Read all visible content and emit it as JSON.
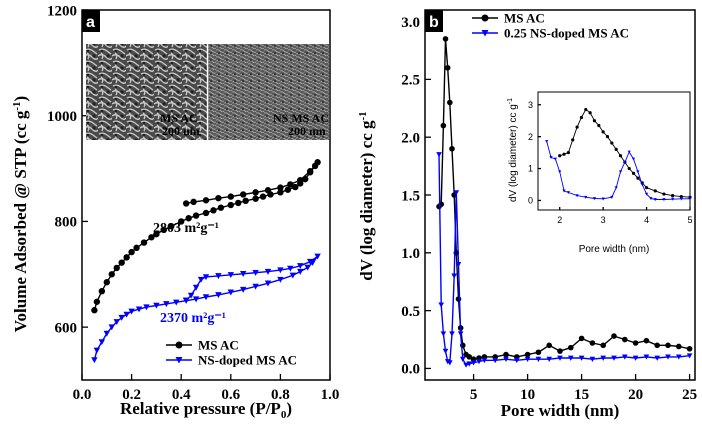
{
  "chart_data": [
    {
      "panel": "a",
      "type": "line",
      "xlabel": "Relative pressure (P/P0)",
      "ylabel": "Volume Adsorbed @ STP (cc g-1)",
      "xlim": [
        0,
        1.0
      ],
      "ylim": [
        500,
        1200
      ],
      "x_ticks": [
        "0.0",
        "0.2",
        "0.4",
        "0.6",
        "0.8",
        "1.0"
      ],
      "y_ticks": [
        "600",
        "800",
        "1000",
        "1200"
      ],
      "annotations": [
        "2803 m²g⁻¹",
        "2370 m²g⁻¹"
      ],
      "insets": [
        "MS AC\n200 nm",
        "NS MS AC\n200 nm"
      ],
      "legend": [
        "MS AC",
        "NS-doped MS AC"
      ],
      "series": [
        {
          "name": "MS AC",
          "color": "#000000",
          "marker": "circle",
          "x": [
            0.05,
            0.06,
            0.08,
            0.1,
            0.12,
            0.14,
            0.16,
            0.18,
            0.2,
            0.22,
            0.25,
            0.28,
            0.3,
            0.33,
            0.36,
            0.4,
            0.43,
            0.46,
            0.5,
            0.53,
            0.56,
            0.6,
            0.63,
            0.66,
            0.7,
            0.73,
            0.76,
            0.8,
            0.83,
            0.86,
            0.88,
            0.9,
            0.92,
            0.94,
            0.95,
            0.92,
            0.88,
            0.84,
            0.8,
            0.75,
            0.7,
            0.65,
            0.6,
            0.55,
            0.5,
            0.45,
            0.42
          ],
          "y": [
            632,
            648,
            668,
            685,
            700,
            712,
            722,
            732,
            742,
            750,
            760,
            770,
            776,
            784,
            791,
            800,
            806,
            811,
            816,
            821,
            826,
            831,
            835,
            839,
            843,
            847,
            851,
            855,
            860,
            865,
            872,
            880,
            893,
            905,
            912,
            895,
            878,
            870,
            864,
            859,
            855,
            851,
            847,
            844,
            840,
            837,
            834
          ]
        },
        {
          "name": "NS-doped MS AC",
          "color": "#0000ff",
          "marker": "triangle-down",
          "x": [
            0.05,
            0.06,
            0.08,
            0.1,
            0.12,
            0.14,
            0.16,
            0.18,
            0.2,
            0.23,
            0.26,
            0.3,
            0.34,
            0.38,
            0.42,
            0.46,
            0.5,
            0.55,
            0.6,
            0.65,
            0.7,
            0.75,
            0.8,
            0.85,
            0.88,
            0.91,
            0.93,
            0.95,
            0.92,
            0.88,
            0.84,
            0.8,
            0.75,
            0.7,
            0.65,
            0.6,
            0.55,
            0.5,
            0.48,
            0.46,
            0.44,
            0.42
          ],
          "y": [
            538,
            556,
            572,
            588,
            600,
            610,
            618,
            624,
            630,
            634,
            638,
            641,
            644,
            647,
            650,
            653,
            657,
            661,
            666,
            671,
            677,
            683,
            690,
            698,
            705,
            713,
            722,
            734,
            724,
            716,
            711,
            708,
            705,
            703,
            701,
            699,
            697,
            695,
            690,
            675,
            660,
            651
          ]
        }
      ]
    },
    {
      "panel": "b",
      "type": "line",
      "xlabel": "Pore width (nm)",
      "ylabel": "dV (log diameter) cc g-1",
      "xlim": [
        0.5,
        25.5
      ],
      "ylim": [
        -0.1,
        3.1
      ],
      "x_ticks": [
        "5",
        "10",
        "15",
        "20",
        "25"
      ],
      "y_ticks": [
        "0.0",
        "0.5",
        "1.0",
        "1.5",
        "2.0",
        "2.5",
        "3.0"
      ],
      "legend": [
        "MS AC",
        "0.25 NS-doped MS AC"
      ],
      "series": [
        {
          "name": "MS AC",
          "color": "#000000",
          "marker": "circle",
          "x": [
            1.8,
            2.0,
            2.2,
            2.4,
            2.6,
            2.8,
            3.0,
            3.2,
            3.4,
            3.6,
            3.8,
            4.0,
            4.3,
            4.6,
            5.0,
            5.5,
            6.0,
            7.0,
            8.0,
            9.0,
            10.0,
            11.0,
            12.0,
            13.0,
            14.0,
            15.0,
            16.0,
            17.0,
            18.0,
            19.0,
            20.0,
            21.0,
            22.0,
            23.0,
            24.0,
            25.0
          ],
          "y": [
            1.4,
            1.42,
            2.1,
            2.85,
            2.6,
            2.3,
            1.9,
            1.5,
            1.0,
            0.6,
            0.35,
            0.2,
            0.12,
            0.1,
            0.08,
            0.09,
            0.1,
            0.1,
            0.12,
            0.1,
            0.12,
            0.14,
            0.2,
            0.15,
            0.18,
            0.26,
            0.22,
            0.2,
            0.28,
            0.25,
            0.22,
            0.24,
            0.2,
            0.2,
            0.19,
            0.17
          ]
        },
        {
          "name": "0.25 NS-doped MS AC",
          "color": "#0000ff",
          "marker": "triangle-down",
          "x": [
            1.8,
            2.0,
            2.2,
            2.4,
            2.6,
            2.8,
            3.0,
            3.2,
            3.4,
            3.6,
            3.8,
            4.0,
            4.3,
            4.6,
            5.0,
            5.5,
            6.0,
            7.0,
            8.0,
            9.0,
            10.0,
            11.0,
            12.0,
            13.0,
            14.0,
            15.0,
            16.0,
            17.0,
            18.0,
            19.0,
            20.0,
            21.0,
            22.0,
            23.0,
            24.0,
            25.0
          ],
          "y": [
            1.85,
            0.55,
            0.3,
            0.15,
            0.06,
            0.05,
            0.3,
            0.8,
            1.52,
            0.9,
            0.3,
            0.08,
            0.03,
            0.04,
            0.05,
            0.06,
            0.07,
            0.07,
            0.08,
            0.07,
            0.08,
            0.08,
            0.08,
            0.09,
            0.09,
            0.09,
            0.08,
            0.09,
            0.09,
            0.1,
            0.09,
            0.1,
            0.09,
            0.1,
            0.1,
            0.11
          ]
        }
      ],
      "inset": {
        "xlabel": "Pore width (nm)",
        "ylabel": "dV (log diameter) cc g-1",
        "xlim": [
          1.5,
          5
        ],
        "ylim": [
          -0.3,
          3.4
        ],
        "x_ticks": [
          "2",
          "3",
          "4",
          "5"
        ],
        "y_ticks": [
          "0",
          "1",
          "2",
          "3"
        ],
        "series": [
          {
            "name": "MS AC",
            "color": "#000000",
            "marker": "circle",
            "x": [
              2.0,
              2.1,
              2.2,
              2.3,
              2.4,
              2.5,
              2.6,
              2.7,
              2.8,
              2.9,
              3.0,
              3.1,
              3.2,
              3.3,
              3.4,
              3.5,
              3.6,
              3.7,
              3.8,
              3.9,
              4.0,
              4.2,
              4.4,
              4.6,
              4.8,
              5.0
            ],
            "y": [
              1.4,
              1.45,
              1.5,
              1.9,
              2.3,
              2.6,
              2.85,
              2.75,
              2.5,
              2.35,
              2.15,
              2.0,
              1.8,
              1.6,
              1.4,
              1.2,
              1.0,
              0.85,
              0.7,
              0.55,
              0.4,
              0.3,
              0.2,
              0.15,
              0.12,
              0.1
            ]
          },
          {
            "name": "0.25 NS-doped MS AC",
            "color": "#0000ff",
            "marker": "triangle-down",
            "x": [
              1.7,
              1.8,
              1.9,
              2.0,
              2.1,
              2.2,
              2.4,
              2.6,
              2.8,
              3.0,
              3.2,
              3.3,
              3.4,
              3.5,
              3.6,
              3.7,
              3.8,
              3.9,
              4.0,
              4.1,
              4.2,
              4.4,
              4.6,
              4.8,
              5.0
            ],
            "y": [
              1.85,
              1.35,
              1.3,
              0.9,
              0.3,
              0.25,
              0.15,
              0.1,
              0.06,
              0.05,
              0.1,
              0.4,
              0.9,
              1.2,
              1.52,
              1.3,
              0.9,
              0.5,
              0.2,
              0.06,
              0.03,
              0.03,
              0.04,
              0.05,
              0.05
            ]
          }
        ]
      }
    }
  ]
}
